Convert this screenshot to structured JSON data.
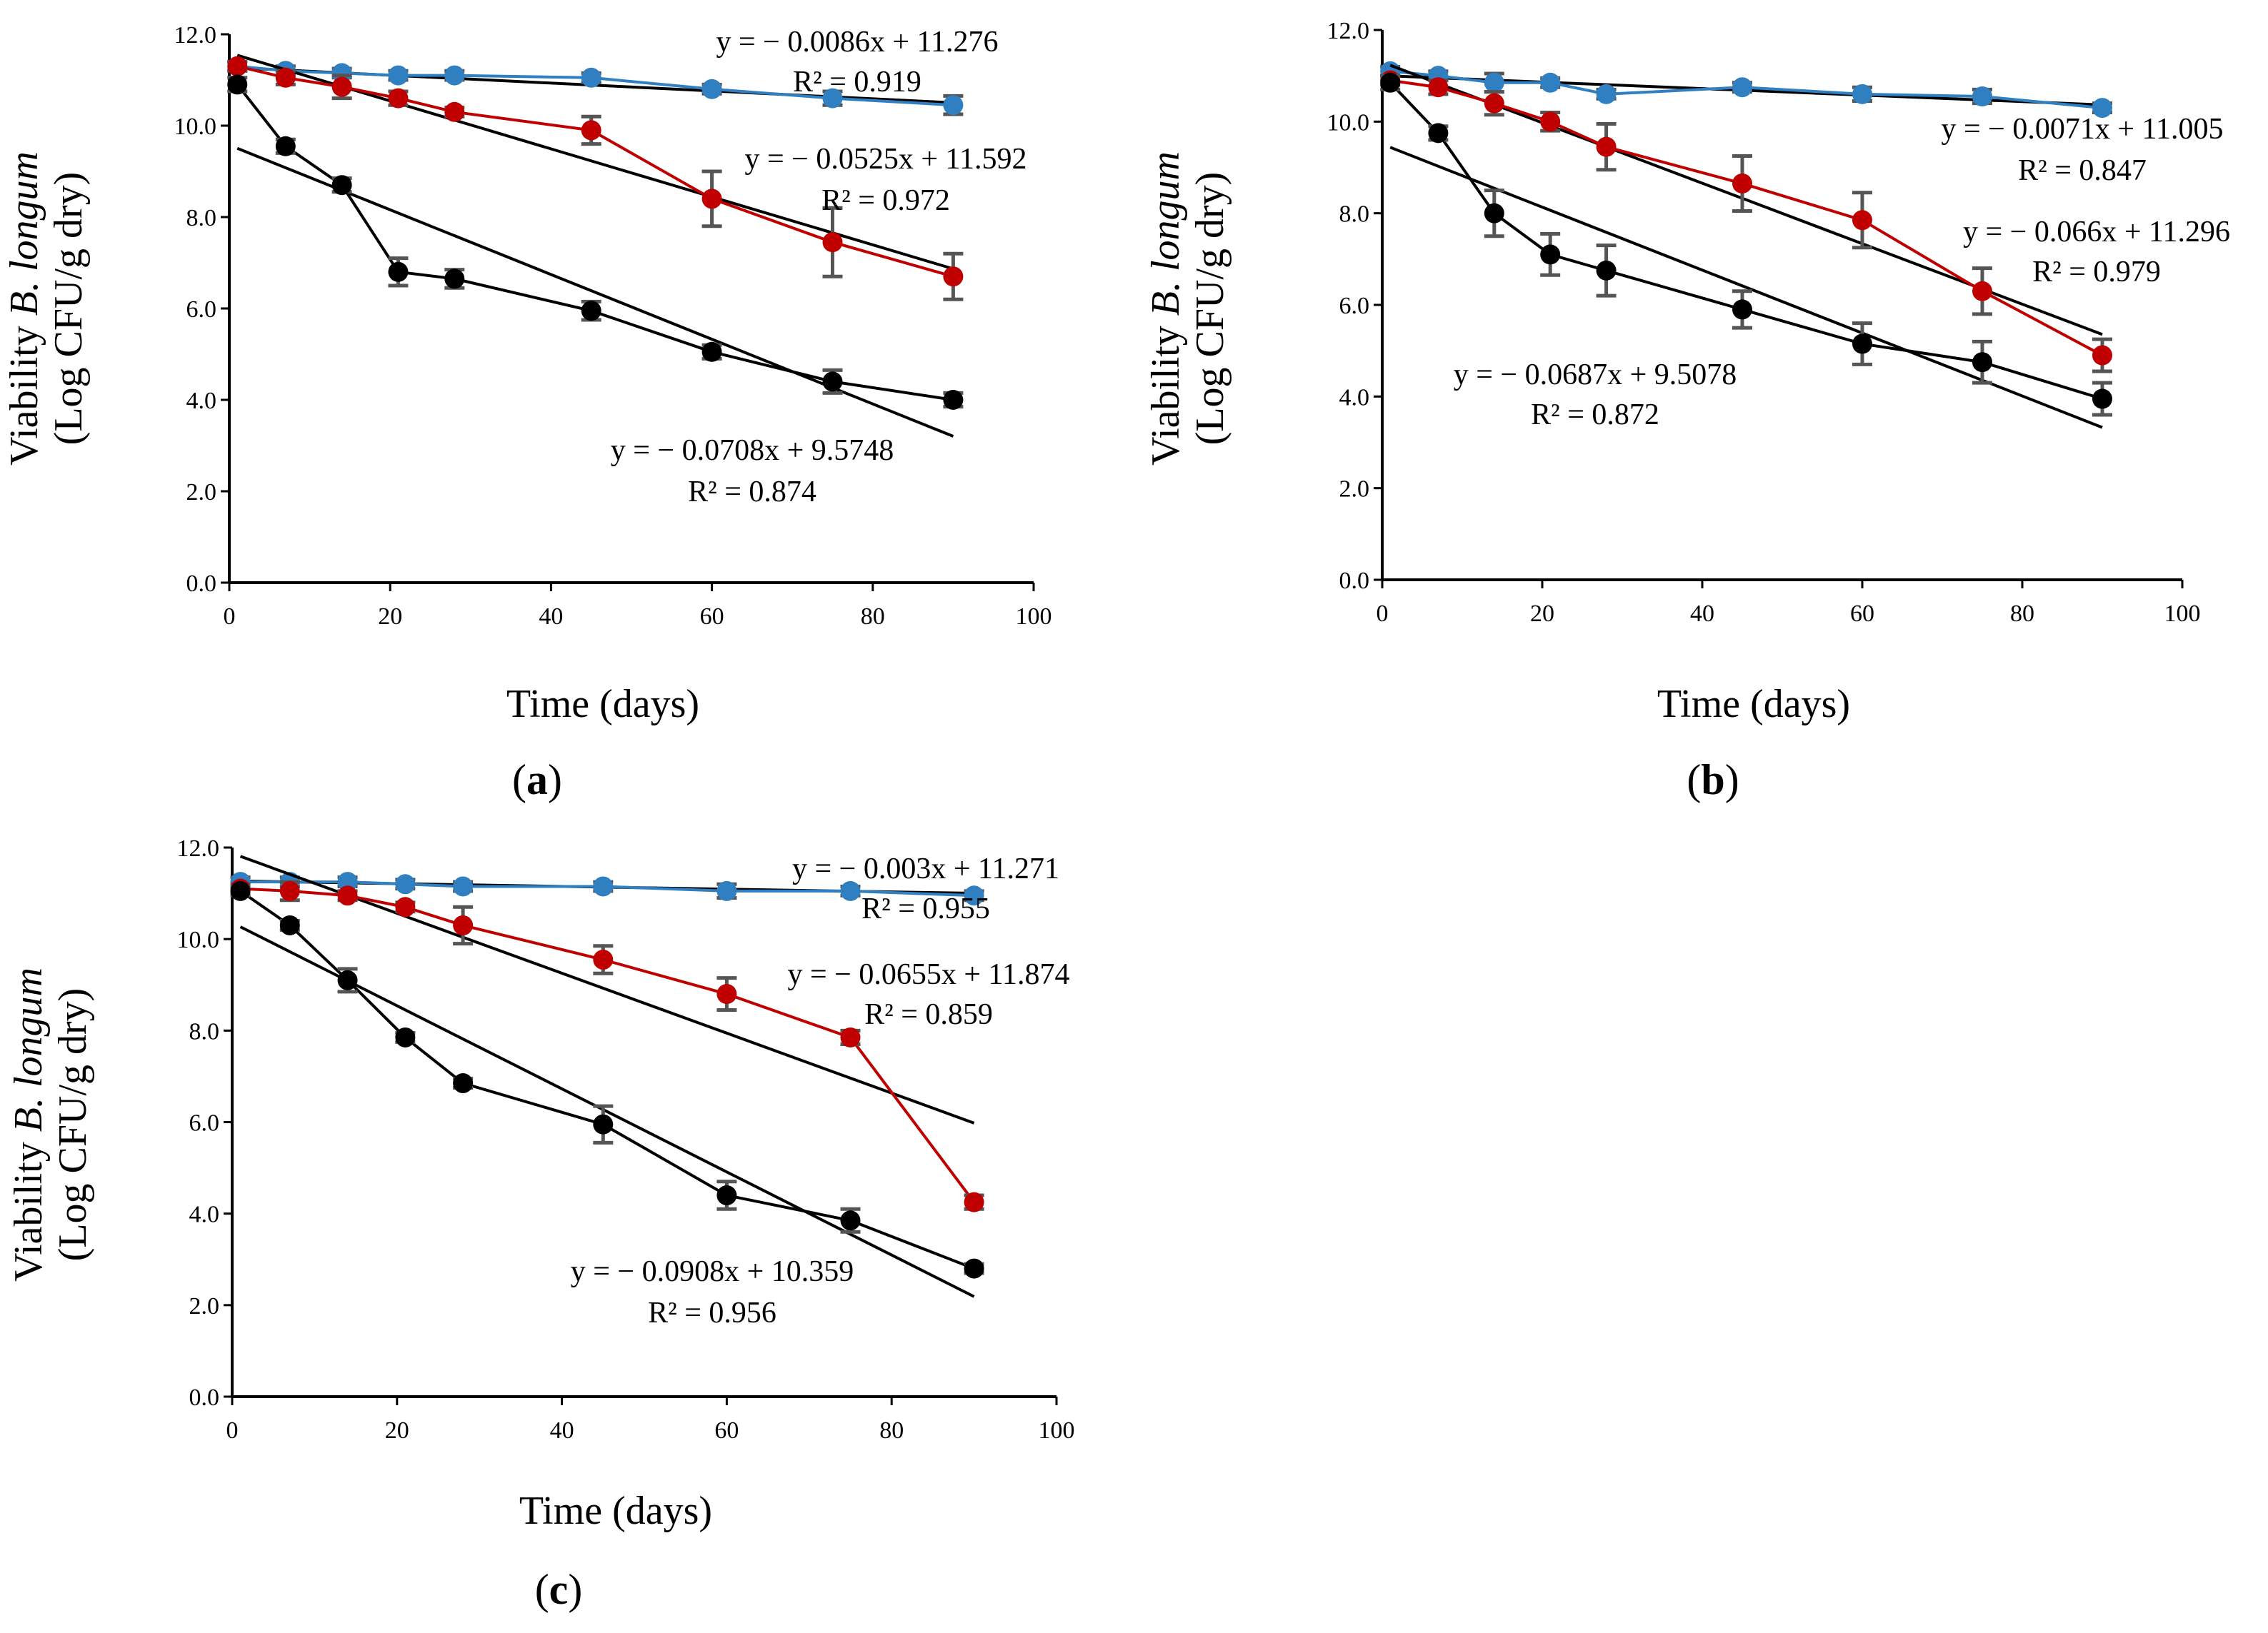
{
  "chart_data": [
    {
      "panel": "a",
      "type": "line",
      "xlabel": "Time (days)",
      "ylabel_prefix": "Viability ",
      "ylabel_italic": "B. longum",
      "ylabel_line2": "(Log CFU/g dry)",
      "xlim": [
        0,
        100
      ],
      "ylim": [
        0,
        12
      ],
      "xticks": [
        "0",
        "20",
        "40",
        "60",
        "80",
        "100"
      ],
      "yticks": [
        "0.0",
        "2.0",
        "4.0",
        "6.0",
        "8.0",
        "10.0",
        "12.0"
      ],
      "panel_label_open": "(",
      "panel_label_letter": "a",
      "panel_label_close": ")",
      "series": [
        {
          "name": "blue",
          "color": "#2f7fc1",
          "x": [
            1,
            7,
            14,
            21,
            28,
            45,
            60,
            75,
            90
          ],
          "y": [
            11.3,
            11.2,
            11.15,
            11.1,
            11.1,
            11.05,
            10.8,
            10.6,
            10.45
          ],
          "err": [
            0.1,
            0.1,
            0.1,
            0.1,
            0.1,
            0.1,
            0.1,
            0.15,
            0.2
          ],
          "trend": {
            "slope": -0.0086,
            "intercept": 11.276
          },
          "equation": "y = − 0.0086x + 11.276",
          "r2": "R² = 0.919"
        },
        {
          "name": "red",
          "color": "#c00000",
          "x": [
            1,
            7,
            14,
            21,
            28,
            45,
            60,
            75,
            90
          ],
          "y": [
            11.3,
            11.05,
            10.85,
            10.6,
            10.3,
            9.9,
            8.4,
            7.45,
            6.7
          ],
          "err": [
            0.1,
            0.15,
            0.25,
            0.15,
            0.1,
            0.3,
            0.6,
            0.75,
            0.5
          ],
          "trend": {
            "slope": -0.0525,
            "intercept": 11.592
          },
          "equation": "y = − 0.0525x + 11.592",
          "r2": "R² = 0.972"
        },
        {
          "name": "black",
          "color": "#000000",
          "x": [
            1,
            7,
            14,
            21,
            28,
            45,
            60,
            75,
            90
          ],
          "y": [
            10.9,
            9.55,
            8.7,
            6.8,
            6.65,
            5.95,
            5.05,
            4.4,
            4.0
          ],
          "err": [
            0.15,
            0.15,
            0.15,
            0.3,
            0.2,
            0.2,
            0.15,
            0.25,
            0.15
          ],
          "trend": {
            "slope": -0.0708,
            "intercept": 9.5748
          },
          "equation": "y = − 0.0708x + 9.5748",
          "r2": "R² = 0.874"
        }
      ]
    },
    {
      "panel": "b",
      "type": "line",
      "xlabel": "Time (days)",
      "ylabel_prefix": "Viability ",
      "ylabel_italic": "B. longum",
      "ylabel_line2": "(Log CFU/g dry)",
      "xlim": [
        0,
        100
      ],
      "ylim": [
        0,
        12
      ],
      "xticks": [
        "0",
        "20",
        "40",
        "60",
        "80",
        "100"
      ],
      "yticks": [
        "0.0",
        "2.0",
        "4.0",
        "6.0",
        "8.0",
        "10.0",
        "12.0"
      ],
      "panel_label_open": "(",
      "panel_label_letter": "b",
      "panel_label_close": ")",
      "series": [
        {
          "name": "blue",
          "color": "#2f7fc1",
          "x": [
            1,
            7,
            14,
            21,
            28,
            45,
            60,
            75,
            90
          ],
          "y": [
            11.1,
            11.0,
            10.85,
            10.85,
            10.6,
            10.75,
            10.6,
            10.55,
            10.3
          ],
          "err": [
            0.1,
            0.1,
            0.2,
            0.1,
            0.1,
            0.1,
            0.15,
            0.15,
            0.1
          ],
          "trend": {
            "slope": -0.0071,
            "intercept": 11.005
          },
          "equation": "y = − 0.0071x + 11.005",
          "r2": "R² = 0.847"
        },
        {
          "name": "red",
          "color": "#c00000",
          "x": [
            1,
            7,
            14,
            21,
            28,
            45,
            60,
            75,
            90
          ],
          "y": [
            10.9,
            10.75,
            10.4,
            10.0,
            9.45,
            8.65,
            7.85,
            6.3,
            4.9
          ],
          "err": [
            0.1,
            0.15,
            0.25,
            0.2,
            0.5,
            0.6,
            0.6,
            0.5,
            0.35
          ],
          "trend": {
            "slope": -0.066,
            "intercept": 11.296
          },
          "equation": "y = − 0.066x + 11.296",
          "r2": "R² = 0.979"
        },
        {
          "name": "black",
          "color": "#000000",
          "x": [
            1,
            7,
            14,
            21,
            28,
            45,
            60,
            75,
            90
          ],
          "y": [
            10.85,
            9.75,
            8.0,
            7.1,
            6.75,
            5.9,
            5.15,
            4.75,
            3.95
          ],
          "err": [
            0.15,
            0.15,
            0.5,
            0.45,
            0.55,
            0.4,
            0.45,
            0.45,
            0.35
          ],
          "trend": {
            "slope": -0.0687,
            "intercept": 9.5078
          },
          "equation": "y = − 0.0687x + 9.5078",
          "r2": "R² = 0.872"
        }
      ]
    },
    {
      "panel": "c",
      "type": "line",
      "xlabel": "Time (days)",
      "ylabel_prefix": "Viability ",
      "ylabel_italic": "B. longum",
      "ylabel_line2": "(Log CFU/g dry)",
      "xlim": [
        0,
        100
      ],
      "ylim": [
        0,
        12
      ],
      "xticks": [
        "0",
        "20",
        "40",
        "60",
        "80",
        "100"
      ],
      "yticks": [
        "0.0",
        "2.0",
        "4.0",
        "6.0",
        "8.0",
        "10.0",
        "12.0"
      ],
      "panel_label_open": "(",
      "panel_label_letter": "c",
      "panel_label_close": ")",
      "series": [
        {
          "name": "blue",
          "color": "#2f7fc1",
          "x": [
            1,
            7,
            14,
            21,
            28,
            45,
            60,
            75,
            90
          ],
          "y": [
            11.25,
            11.25,
            11.25,
            11.2,
            11.15,
            11.15,
            11.05,
            11.05,
            10.95
          ],
          "err": [
            0.1,
            0.1,
            0.1,
            0.1,
            0.1,
            0.1,
            0.15,
            0.1,
            0.1
          ],
          "trend": {
            "slope": -0.003,
            "intercept": 11.271
          },
          "equation": "y = − 0.003x + 11.271",
          "r2": "R² = 0.955"
        },
        {
          "name": "red",
          "color": "#c00000",
          "x": [
            1,
            7,
            14,
            21,
            28,
            45,
            60,
            75,
            90
          ],
          "y": [
            11.1,
            11.05,
            10.95,
            10.7,
            10.3,
            9.55,
            8.8,
            7.85,
            4.25
          ],
          "err": [
            0.1,
            0.2,
            0.1,
            0.1,
            0.4,
            0.3,
            0.35,
            0.15,
            0.15
          ],
          "trend": {
            "slope": -0.0655,
            "intercept": 11.874
          },
          "equation": "y = − 0.0655x + 11.874",
          "r2": "R² = 0.859"
        },
        {
          "name": "black",
          "color": "#000000",
          "x": [
            1,
            7,
            14,
            21,
            28,
            45,
            60,
            75,
            90
          ],
          "y": [
            11.05,
            10.3,
            9.1,
            7.85,
            6.85,
            5.95,
            4.4,
            3.85,
            2.8
          ],
          "err": [
            0.1,
            0.1,
            0.25,
            0.1,
            0.1,
            0.4,
            0.3,
            0.25,
            0.1
          ],
          "trend": {
            "slope": -0.0908,
            "intercept": 10.359
          },
          "equation": "y = − 0.0908x + 10.359",
          "r2": "R² = 0.956"
        }
      ]
    }
  ]
}
